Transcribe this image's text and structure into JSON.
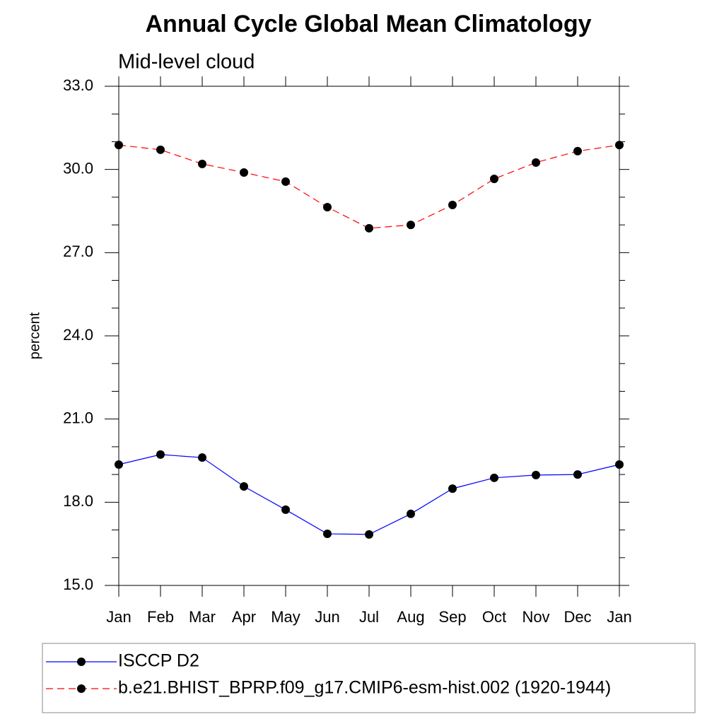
{
  "chart_data": {
    "type": "line",
    "title": "Annual Cycle Global Mean Climatology",
    "subtitle": "Mid-level cloud",
    "y_label": "percent",
    "categories": [
      "Jan",
      "Feb",
      "Mar",
      "Apr",
      "May",
      "Jun",
      "Jul",
      "Aug",
      "Sep",
      "Oct",
      "Nov",
      "Dec",
      "Jan"
    ],
    "series": [
      {
        "name": "ISCCP D2",
        "color": "#0000ff",
        "line_style": "solid",
        "values": [
          19.36,
          19.72,
          19.61,
          18.57,
          17.73,
          16.86,
          16.84,
          17.58,
          18.49,
          18.88,
          18.98,
          19.0,
          19.36
        ]
      },
      {
        "name": "b.e21.BHIST_BPRP.f09_g17.CMIP6-esm-hist.002 (1920-1944)",
        "color": "#ff0000",
        "line_style": "dashed",
        "values": [
          30.88,
          30.71,
          30.2,
          29.89,
          29.56,
          28.64,
          27.88,
          28.0,
          28.72,
          29.66,
          30.25,
          30.66,
          30.88
        ]
      }
    ],
    "ylim": [
      15,
      33
    ],
    "yticks": [
      {
        "value": 15,
        "label": "15.0"
      },
      {
        "value": 18,
        "label": "18.0"
      },
      {
        "value": 21,
        "label": "21.0"
      },
      {
        "value": 24,
        "label": "24.0"
      },
      {
        "value": 27,
        "label": "27.0"
      },
      {
        "value": 30,
        "label": "30.0"
      },
      {
        "value": 33,
        "label": "33.0"
      }
    ],
    "yminorticks": [
      16,
      17,
      19,
      20,
      22,
      23,
      25,
      26,
      28,
      29,
      31,
      32
    ],
    "marker_color": "#000000",
    "grid": false
  }
}
